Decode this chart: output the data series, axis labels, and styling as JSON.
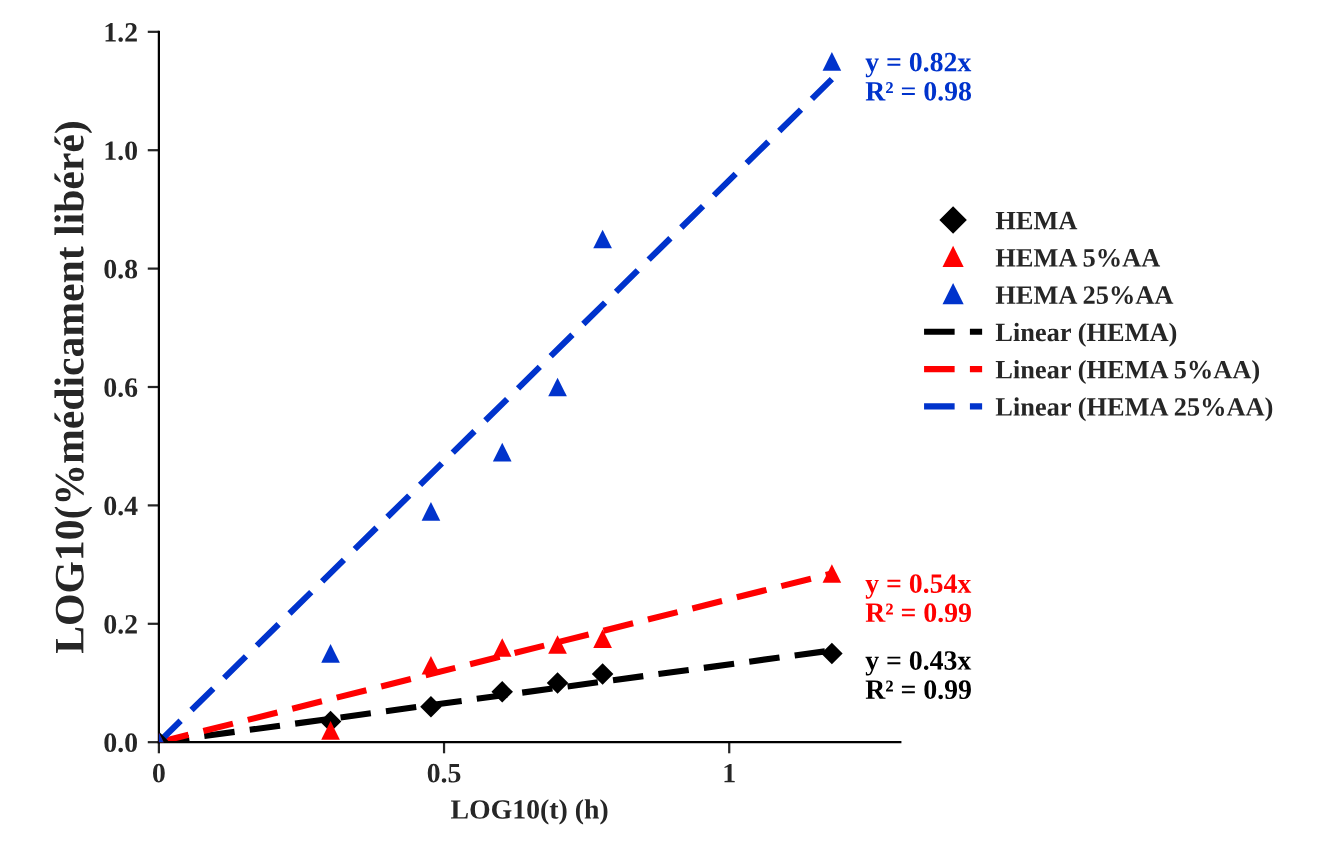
{
  "chart_data": {
    "type": "scatter",
    "xlabel": "LOG10(t) (h)",
    "ylabel": "LOG10(%médicament libéré)",
    "xlim": [
      0,
      1.3
    ],
    "ylim": [
      0,
      1.2
    ],
    "xticks": [
      0,
      0.5,
      1
    ],
    "yticks": [
      {
        "value": 0,
        "label": "0.0"
      },
      {
        "value": 0.2,
        "label": "0.2"
      },
      {
        "value": 0.4,
        "label": "0.4"
      },
      {
        "value": 0.6,
        "label": "0.6"
      },
      {
        "value": 0.8,
        "label": "0.8"
      },
      {
        "value": 1.0,
        "label": "1.0"
      },
      {
        "value": 1.2,
        "label": "1.2"
      }
    ],
    "grid": false,
    "legend": "right",
    "series": [
      {
        "name": "HEMA",
        "type": "scatter",
        "marker": "diamond",
        "color": "#000000",
        "x": [
          0,
          0.301,
          0.477,
          0.602,
          0.699,
          0.778,
          1.18
        ],
        "values": [
          0,
          0.035,
          0.06,
          0.085,
          0.1,
          0.115,
          0.15
        ]
      },
      {
        "name": "HEMA 5%AA",
        "type": "scatter",
        "marker": "triangle",
        "color": "#ff0000",
        "x": [
          0,
          0.301,
          0.477,
          0.602,
          0.699,
          0.778,
          1.18
        ],
        "values": [
          0,
          0.02,
          0.13,
          0.16,
          0.165,
          0.175,
          0.285
        ]
      },
      {
        "name": "HEMA 25%AA",
        "type": "scatter",
        "marker": "triangle",
        "color": "#0033cc",
        "x": [
          0,
          0.301,
          0.477,
          0.602,
          0.699,
          0.778,
          1.18
        ],
        "values": [
          0,
          0.15,
          0.39,
          0.49,
          0.6,
          0.85,
          1.15
        ]
      },
      {
        "name": "Linear (HEMA)",
        "type": "line",
        "line_style": "dashed",
        "color": "#000000",
        "x": [
          0,
          1.18
        ],
        "values": [
          0,
          0.155
        ]
      },
      {
        "name": "Linear (HEMA 5%AA)",
        "type": "line",
        "line_style": "dashed",
        "color": "#ff0000",
        "x": [
          0,
          1.18
        ],
        "values": [
          0,
          0.285
        ]
      },
      {
        "name": "Linear (HEMA 25%AA)",
        "type": "line",
        "line_style": "dashed",
        "color": "#0033cc",
        "x": [
          0,
          1.18
        ],
        "values": [
          0,
          1.12
        ]
      }
    ],
    "annotations": [
      "y = 0.43x\nR² = 0.99",
      "y = 0.54x\nR² = 0.99",
      "y = 0.82x\nR² = 0.98"
    ]
  }
}
